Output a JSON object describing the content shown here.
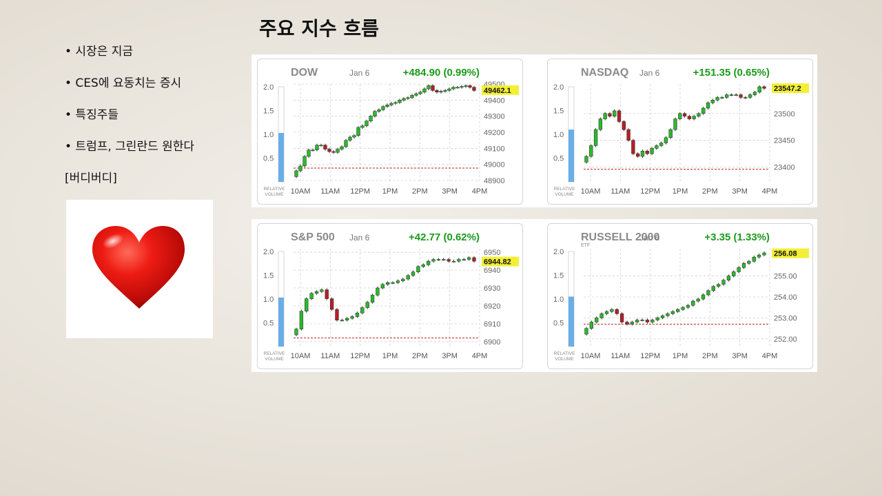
{
  "slide": {
    "title": "주요 지수 흐름",
    "bullets": [
      "• 시장은 지금",
      "• CES에 요동치는 증시",
      "• 특징주들",
      "• 트럼프, 그린란드 원한다",
      "[버디버디]"
    ],
    "heart_icon": "heart-icon",
    "colors": {
      "up": "#2db82d",
      "down": "#b52025",
      "volume": "#6aaee8",
      "price_tag": "#f3ef36",
      "change": "#1c9a1c"
    }
  },
  "chart_data": [
    {
      "type": "candlestick",
      "name": "DOW",
      "date": "Jan 6",
      "change": "+484.90 (0.99%)",
      "last": "49462.1",
      "sub": "",
      "vol_label_1": "RELATIVE",
      "vol_label_2": "VOLUME",
      "vol_ticks": [
        "2.0",
        "1.5",
        "1.0",
        "0.5"
      ],
      "relative_volume": 1.03,
      "x_ticks": [
        "10AM",
        "11AM",
        "12PM",
        "1PM",
        "2PM",
        "3PM",
        "4PM"
      ],
      "y_ticks": [
        "49500",
        "49400",
        "49300",
        "49200",
        "49100",
        "49000",
        "48900"
      ],
      "y_range": [
        48900,
        49500
      ],
      "prev_close": 48977,
      "points": [
        48960,
        48990,
        49050,
        49090,
        49090,
        49120,
        49120,
        49095,
        49080,
        49075,
        49095,
        49110,
        49150,
        49170,
        49180,
        49230,
        49240,
        49270,
        49300,
        49330,
        49340,
        49360,
        49370,
        49380,
        49385,
        49400,
        49410,
        49415,
        49430,
        49440,
        49450,
        49470,
        49490,
        49460,
        49450,
        49455,
        49460,
        49470,
        49480,
        49480,
        49485,
        49490,
        49480,
        49460
      ]
    },
    {
      "type": "candlestick",
      "name": "NASDAQ",
      "date": "Jan 6",
      "change": "+151.35 (0.65%)",
      "last": "23547.2",
      "sub": "",
      "vol_label_1": "RELATIVE",
      "vol_label_2": "VOLUME",
      "vol_ticks": [
        "2.0",
        "1.5",
        "1.0",
        "0.5"
      ],
      "relative_volume": 1.1,
      "x_ticks": [
        "10AM",
        "11AM",
        "12PM",
        "1PM",
        "2PM",
        "3PM",
        "4PM"
      ],
      "y_ticks": [
        "23500",
        "23450",
        "23400"
      ],
      "y_range": [
        23375,
        23555
      ],
      "prev_close": 23396,
      "points": [
        23420,
        23440,
        23470,
        23490,
        23500,
        23495,
        23505,
        23485,
        23470,
        23450,
        23425,
        23420,
        23430,
        23425,
        23435,
        23440,
        23445,
        23455,
        23470,
        23490,
        23500,
        23495,
        23490,
        23495,
        23500,
        23510,
        23520,
        23525,
        23530,
        23530,
        23535,
        23535,
        23535,
        23530,
        23530,
        23535,
        23540,
        23550,
        23547
      ]
    },
    {
      "type": "candlestick",
      "name": "S&P 500",
      "date": "Jan 6",
      "change": "+42.77 (0.62%)",
      "last": "6944.82",
      "sub": "",
      "vol_label_1": "RELATIVE",
      "vol_label_2": "VOLUME",
      "vol_ticks": [
        "2.0",
        "1.5",
        "1.0",
        "0.5"
      ],
      "relative_volume": 1.03,
      "x_ticks": [
        "10AM",
        "11AM",
        "12PM",
        "1PM",
        "2PM",
        "3PM",
        "4PM"
      ],
      "y_ticks": [
        "6950",
        "6940",
        "6930",
        "6920",
        "6910",
        "6900"
      ],
      "y_range": [
        6898,
        6952
      ],
      "prev_close": 6902,
      "points": [
        6907,
        6917,
        6924,
        6927,
        6928,
        6929,
        6924,
        6918,
        6912,
        6912,
        6913,
        6914,
        6916,
        6919,
        6922,
        6926,
        6930,
        6932,
        6933,
        6933,
        6934,
        6935,
        6937,
        6939,
        6942,
        6943,
        6945,
        6946,
        6946,
        6946,
        6945,
        6945,
        6946,
        6946,
        6947,
        6945
      ]
    },
    {
      "type": "candlestick",
      "name": "RUSSELL 2000",
      "date": "Jan 6",
      "change": "+3.35 (1.33%)",
      "last": "256.08",
      "sub": "ETF",
      "vol_label_1": "RELATIVE",
      "vol_label_2": "VOLUME",
      "vol_ticks": [
        "2.0",
        "1.5",
        "1.0",
        "0.5"
      ],
      "relative_volume": 1.05,
      "x_ticks": [
        "10AM",
        "11AM",
        "12PM",
        "1PM",
        "2PM",
        "3PM",
        "4PM"
      ],
      "y_ticks": [
        "255.00",
        "254.00",
        "253.00",
        "252.00"
      ],
      "y_range": [
        251.7,
        256.3
      ],
      "prev_close": 252.7,
      "points": [
        252.5,
        252.8,
        253.0,
        253.2,
        253.3,
        253.4,
        253.2,
        252.8,
        252.7,
        252.8,
        252.9,
        252.9,
        252.8,
        252.9,
        253.0,
        253.1,
        253.2,
        253.3,
        253.4,
        253.5,
        253.6,
        253.8,
        253.9,
        254.1,
        254.3,
        254.5,
        254.6,
        254.8,
        255.0,
        255.2,
        255.4,
        255.6,
        255.7,
        255.9,
        256.0,
        256.1
      ]
    }
  ]
}
